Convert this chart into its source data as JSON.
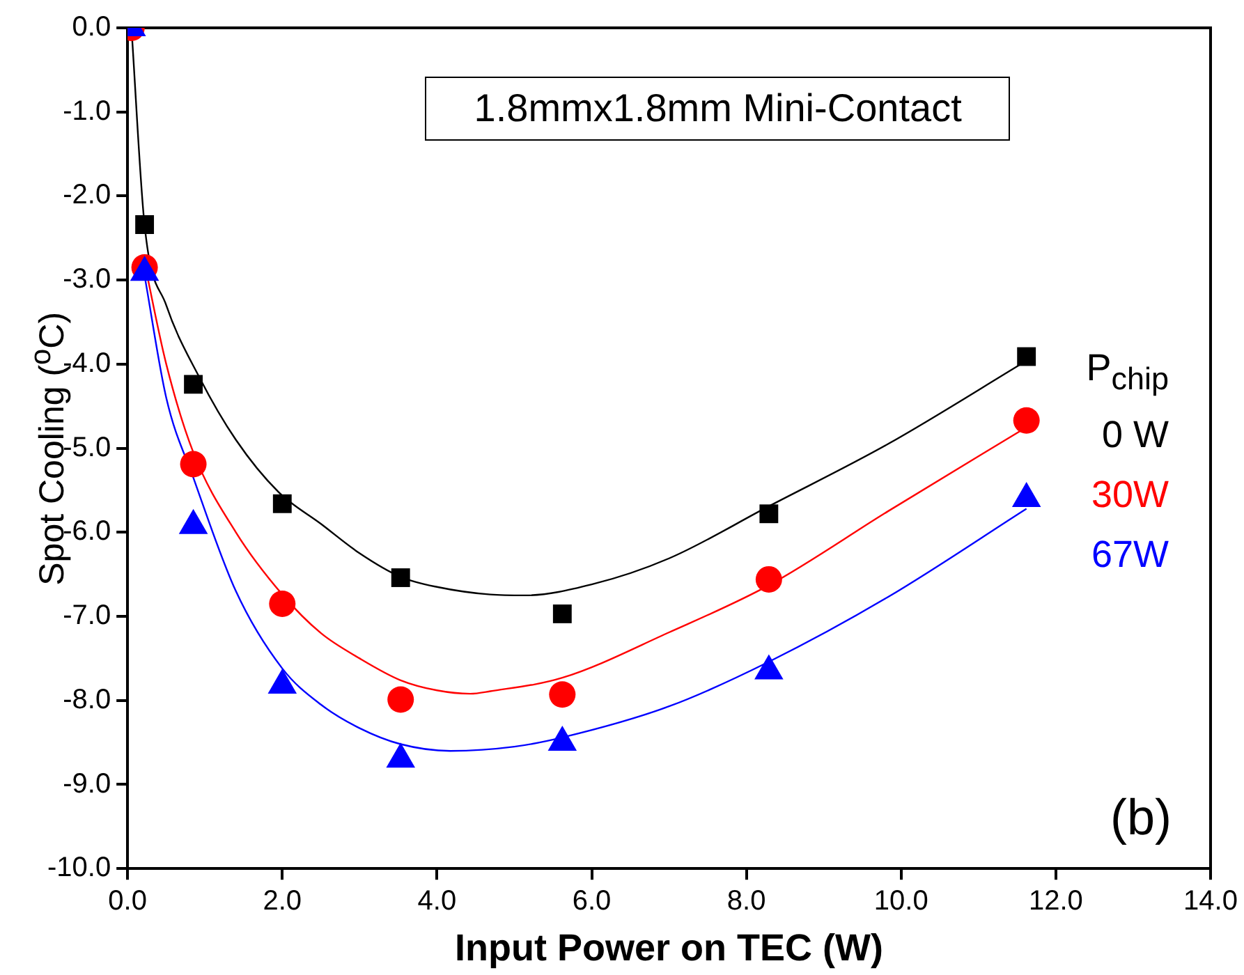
{
  "chart_data": {
    "type": "scatter",
    "xlabel": "Input Power on TEC (W)",
    "ylabel": "Spot Cooling ($^{o}$C)",
    "legend_title": "P$_{chip}$",
    "annotations": [
      "1.8mmx1.8mm Mini-Contact",
      "(b)"
    ],
    "xlim": [
      0,
      14
    ],
    "xticks": [
      {
        "value": 0,
        "label": "0.0"
      },
      {
        "value": 2,
        "label": "2.0"
      },
      {
        "value": 4,
        "label": "4.0"
      },
      {
        "value": 6,
        "label": "6.0"
      },
      {
        "value": 8,
        "label": "8.0"
      },
      {
        "value": 10,
        "label": "10.0"
      },
      {
        "value": 12,
        "label": "12.0"
      },
      {
        "value": 14,
        "label": "14.0"
      }
    ],
    "ylim": [
      -10,
      0
    ],
    "yticks": [
      {
        "value": 0,
        "label": "0.0"
      },
      {
        "value": -1,
        "label": "-1.0"
      },
      {
        "value": -2,
        "label": "-2.0"
      },
      {
        "value": -3,
        "label": "-3.0"
      },
      {
        "value": -4,
        "label": "-4.0"
      },
      {
        "value": -5,
        "label": "-5.0"
      },
      {
        "value": -6,
        "label": "-6.0"
      },
      {
        "value": -7,
        "label": "-7.0"
      },
      {
        "value": -8,
        "label": "-8.0"
      },
      {
        "value": -9,
        "label": "-9.0"
      },
      {
        "value": -10,
        "label": "-10.0"
      }
    ],
    "grid": false,
    "legend": "right",
    "series": [
      {
        "name": "0 W",
        "marker": "square",
        "color": "#000000",
        "x": [
          0.22,
          0.85,
          2.0,
          3.53,
          5.62,
          8.29,
          11.62
        ],
        "values": [
          -2.34,
          -4.24,
          -5.66,
          -6.54,
          -6.97,
          -5.78,
          -3.91
        ]
      },
      {
        "name": "30W",
        "marker": "circle",
        "color": "#ff0000",
        "x": [
          0.05,
          0.22,
          0.85,
          2.0,
          3.53,
          5.62,
          8.29,
          11.62
        ],
        "values": [
          0.0,
          -2.85,
          -5.19,
          -6.85,
          -7.99,
          -7.93,
          -6.56,
          -4.67
        ]
      },
      {
        "name": "67W",
        "marker": "triangle",
        "color": "#0000ff",
        "x": [
          0.05,
          0.22,
          0.85,
          2.0,
          3.53,
          5.62,
          8.29,
          11.62
        ],
        "values": [
          0.0,
          -2.91,
          -5.92,
          -7.82,
          -8.7,
          -8.5,
          -7.65,
          -5.6
        ]
      },
      {
        "type": "line",
        "marker": "none",
        "color": "#000000",
        "x": [
          0.05,
          0.22,
          0.5,
          0.93,
          1.4,
          1.95,
          2.5,
          3.0,
          3.53,
          4.0,
          4.69,
          5.14,
          6.0,
          7.0,
          8.29,
          9.83,
          11.62
        ],
        "values": [
          0.0,
          -2.35,
          -3.3,
          -4.16,
          -4.9,
          -5.52,
          -5.9,
          -6.25,
          -6.53,
          -6.65,
          -6.74,
          -6.75,
          -6.62,
          -6.31,
          -5.69,
          -4.95,
          -3.96
        ]
      },
      {
        "type": "line",
        "marker": "none",
        "color": "#ff0000",
        "x": [
          0.22,
          0.5,
          0.85,
          1.4,
          2.0,
          2.5,
          3.0,
          3.53,
          4.0,
          4.43,
          4.69,
          5.62,
          7.0,
          8.29,
          9.83,
          11.62
        ],
        "values": [
          -2.8,
          -4.0,
          -5.05,
          -6.0,
          -6.74,
          -7.2,
          -7.5,
          -7.76,
          -7.88,
          -7.92,
          -7.89,
          -7.73,
          -7.19,
          -6.63,
          -5.75,
          -4.75
        ]
      },
      {
        "type": "line",
        "marker": "none",
        "color": "#0000ff",
        "x": [
          0.22,
          0.5,
          0.85,
          1.4,
          2.0,
          2.5,
          3.0,
          3.53,
          4.17,
          5.0,
          5.62,
          7.0,
          8.29,
          9.83,
          11.62
        ],
        "values": [
          -2.95,
          -4.4,
          -5.35,
          -6.7,
          -7.62,
          -8.05,
          -8.33,
          -8.52,
          -8.6,
          -8.55,
          -8.44,
          -8.07,
          -7.54,
          -6.77,
          -5.72
        ]
      }
    ]
  }
}
